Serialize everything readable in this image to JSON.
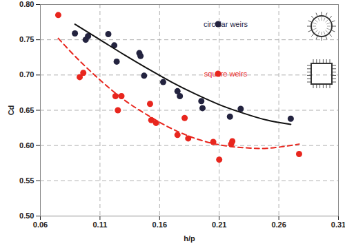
{
  "chart_data": {
    "type": "scatter",
    "x_label": "h/p",
    "y_label": "Cd",
    "xlim": [
      0.06,
      0.31
    ],
    "xticks": [
      0.06,
      0.11,
      0.16,
      0.21,
      0.26,
      0.31
    ],
    "ylim": [
      0.5,
      0.8
    ],
    "yticks": [
      {
        "value": 0.5,
        "label": "0.50"
      },
      0.55,
      {
        "value": 0.6,
        "label": "0.60"
      },
      0.65,
      {
        "value": 0.7,
        "label": "0.70"
      },
      0.75,
      {
        "value": 0.8,
        "label": "0.80"
      }
    ],
    "grid": true,
    "legend": "top-right",
    "series": [
      {
        "name": "circular weirs",
        "type": "scatter",
        "marker": "circle",
        "color": "#23233f",
        "x": [
          0.089,
          0.098,
          0.1,
          0.117,
          0.122,
          0.124,
          0.143,
          0.144,
          0.147,
          0.163,
          0.175,
          0.177,
          0.195,
          0.196,
          0.219,
          0.228,
          0.27
        ],
        "values": [
          0.759,
          0.75,
          0.755,
          0.758,
          0.742,
          0.719,
          0.731,
          0.727,
          0.699,
          0.69,
          0.677,
          0.67,
          0.663,
          0.653,
          0.641,
          0.652,
          0.638
        ]
      },
      {
        "name": "square weirs",
        "type": "scatter",
        "marker": "circle",
        "color": "#e8261e",
        "x": [
          0.075,
          0.093,
          0.096,
          0.123,
          0.125,
          0.128,
          0.152,
          0.153,
          0.157,
          0.175,
          0.181,
          0.184,
          0.205,
          0.21,
          0.22,
          0.221,
          0.277
        ],
        "values": [
          0.785,
          0.697,
          0.703,
          0.67,
          0.65,
          0.67,
          0.659,
          0.636,
          0.632,
          0.615,
          0.639,
          0.61,
          0.605,
          0.58,
          0.602,
          0.606,
          0.588
        ]
      },
      {
        "type": "line",
        "line_style": "solid",
        "color": "#111111",
        "x": [
          0.089,
          0.11,
          0.13,
          0.15,
          0.17,
          0.19,
          0.21,
          0.23,
          0.25,
          0.27
        ],
        "values": [
          0.772,
          0.75,
          0.729,
          0.709,
          0.69,
          0.673,
          0.658,
          0.646,
          0.636,
          0.63
        ]
      },
      {
        "type": "line",
        "line_style": "dashed",
        "color": "#e8261e",
        "x": [
          0.075,
          0.09,
          0.11,
          0.13,
          0.15,
          0.17,
          0.19,
          0.21,
          0.23,
          0.25,
          0.277
        ],
        "values": [
          0.752,
          0.725,
          0.693,
          0.665,
          0.643,
          0.624,
          0.61,
          0.601,
          0.597,
          0.596,
          0.602
        ]
      }
    ]
  }
}
